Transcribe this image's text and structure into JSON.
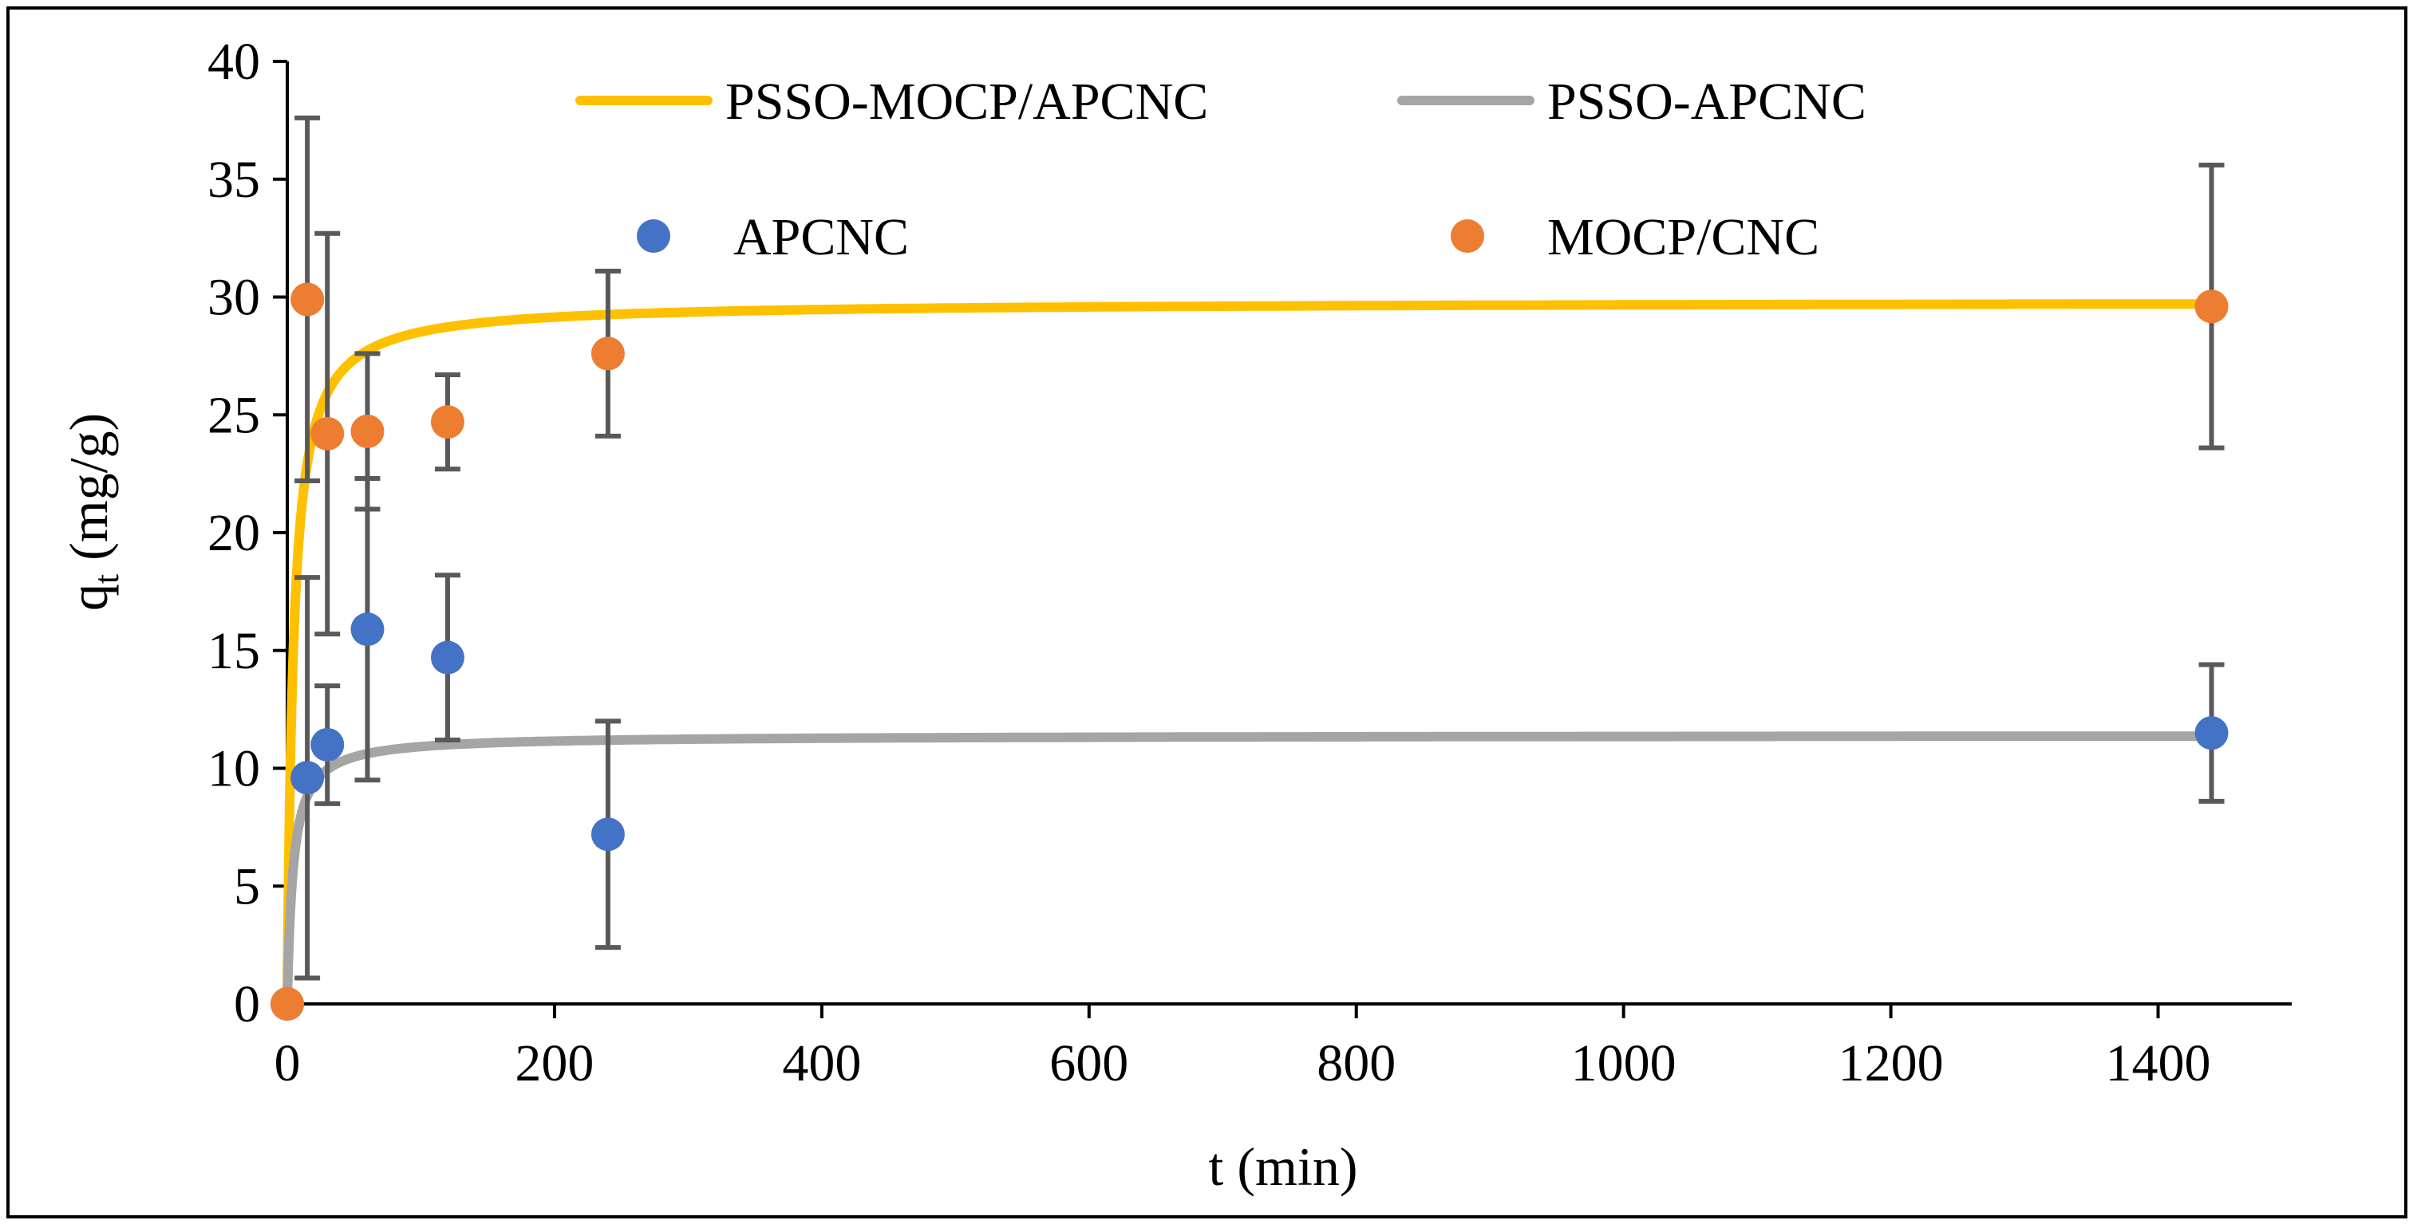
{
  "chart_data": {
    "type": "scatter",
    "title": "",
    "xlabel": "t (min)",
    "ylabel_main": "q",
    "ylabel_sub": "t",
    "ylabel_rest": " (mg/g)",
    "xlim": [
      0,
      1500
    ],
    "ylim": [
      0,
      40
    ],
    "xticks": [
      0,
      200,
      400,
      600,
      800,
      1000,
      1200,
      1400
    ],
    "yticks": [
      0,
      5,
      10,
      15,
      20,
      25,
      30,
      35,
      40
    ],
    "grid": false,
    "legend_position": "top",
    "series": [
      {
        "name": "PSSO-MOCP/APCNC",
        "kind": "line",
        "color": "#FFC000",
        "model": "pso",
        "qe": 29.8,
        "k": 0.0075
      },
      {
        "name": "PSSO-APCNC",
        "kind": "line",
        "color": "#A5A5A5",
        "model": "pso",
        "qe": 11.4,
        "k": 0.02
      },
      {
        "name": "APCNC",
        "kind": "scatter",
        "color": "#4472C4",
        "points": [
          {
            "x": 0,
            "y": 0,
            "err": 0
          },
          {
            "x": 15,
            "y": 9.6,
            "err": 8.5
          },
          {
            "x": 30,
            "y": 11.0,
            "err": 2.5
          },
          {
            "x": 60,
            "y": 15.9,
            "err": 6.4
          },
          {
            "x": 120,
            "y": 14.7,
            "err": 3.5
          },
          {
            "x": 240,
            "y": 7.2,
            "err": 4.8
          },
          {
            "x": 1440,
            "y": 11.5,
            "err": 2.9
          }
        ]
      },
      {
        "name": "MOCP/CNC",
        "kind": "scatter",
        "color": "#ED7D31",
        "points": [
          {
            "x": 0,
            "y": 0,
            "err": 0
          },
          {
            "x": 15,
            "y": 29.9,
            "err": 7.7
          },
          {
            "x": 30,
            "y": 24.2,
            "err": 8.5
          },
          {
            "x": 60,
            "y": 24.3,
            "err": 3.3
          },
          {
            "x": 120,
            "y": 24.7,
            "err": 2.0
          },
          {
            "x": 240,
            "y": 27.6,
            "err": 3.5
          },
          {
            "x": 1440,
            "y": 29.6,
            "err": 6.0
          }
        ]
      }
    ],
    "error_bar_color": "#595959"
  }
}
